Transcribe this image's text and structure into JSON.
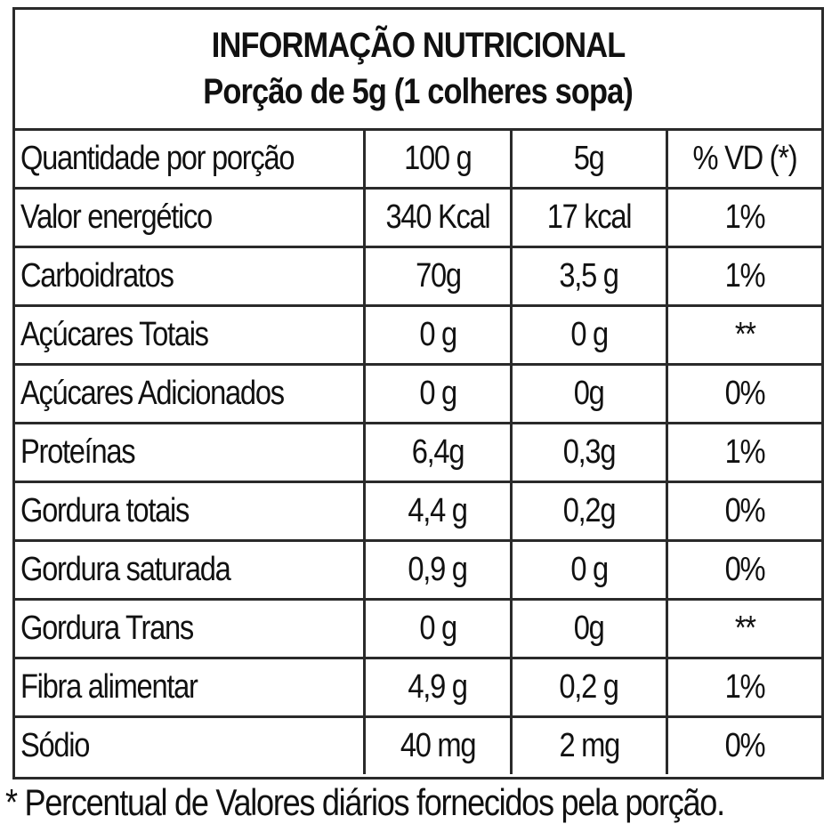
{
  "header": {
    "title": "INFORMAÇÃO NUTRICIONAL",
    "subtitle": "Porção de 5g (1 colheres sopa)"
  },
  "columns": [
    "Quantidade por porção",
    "100 g",
    "5g",
    "% VD (*)"
  ],
  "rows": [
    [
      "Valor energético",
      "340 Kcal",
      "17 kcal",
      "1%"
    ],
    [
      "Carboidratos",
      "70g",
      "3,5 g",
      "1%"
    ],
    [
      "Açúcares Totais",
      "0 g",
      "0 g",
      "**"
    ],
    [
      "Açúcares Adicionados",
      "0 g",
      "0g",
      "0%"
    ],
    [
      "Proteínas",
      "6,4g",
      "0,3g",
      "1%"
    ],
    [
      "Gordura totais",
      "4,4 g",
      "0,2g",
      "0%"
    ],
    [
      "Gordura saturada",
      "0,9 g",
      "0 g",
      "0%"
    ],
    [
      "Gordura Trans",
      "0 g",
      "0g",
      "**"
    ],
    [
      "Fibra alimentar",
      "4,9 g",
      "0,2 g",
      "1%"
    ],
    [
      "Sódio",
      "40 mg",
      "2 mg",
      "0%"
    ]
  ],
  "footnote": "* Percentual de Valores diários fornecidos pela porção."
}
